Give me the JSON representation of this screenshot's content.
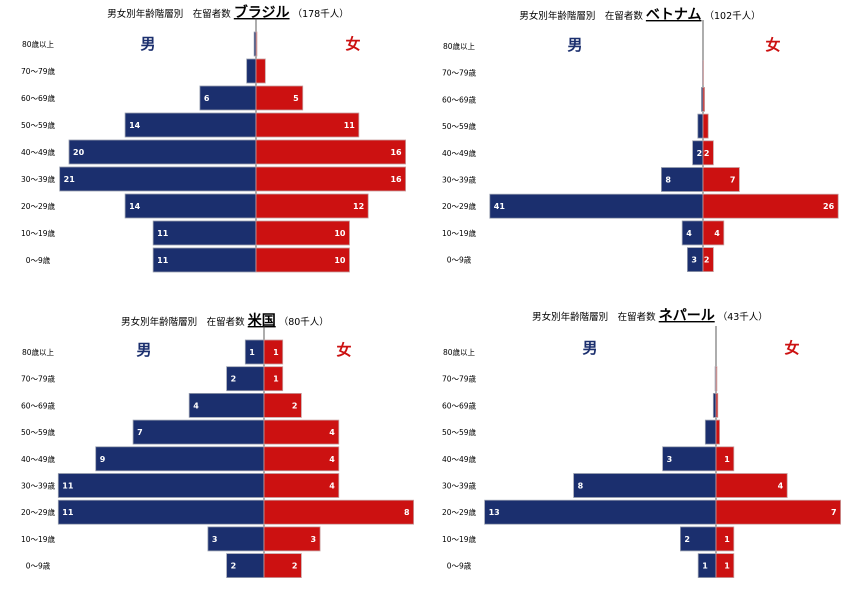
{
  "chart_data": [
    {
      "type": "bar",
      "title_prefix": "男女別年齢階層別　在留者数",
      "title_name": "ブラジル",
      "title_total": "（178千人）",
      "categories": [
        "80歳以上",
        "70～79歳",
        "60～69歳",
        "50～59歳",
        "40～49歳",
        "30～39歳",
        "20～29歳",
        "10～19歳",
        "0～9歳"
      ],
      "series": [
        {
          "name": "男",
          "values": [
            0.2,
            1,
            6,
            14,
            20,
            21,
            14,
            11,
            11
          ],
          "labels": [
            "",
            "",
            "6",
            "14",
            "20",
            "21",
            "14",
            "11",
            "11"
          ]
        },
        {
          "name": "女",
          "values": [
            0.1,
            1,
            5,
            11,
            16,
            16,
            12,
            10,
            10
          ],
          "labels": [
            "",
            "",
            "5",
            "11",
            "16",
            "16",
            "12",
            "10",
            "10"
          ]
        }
      ],
      "colors": {
        "male": "#1b2f6e",
        "female": "#cc1111"
      }
    },
    {
      "type": "bar",
      "title_prefix": "男女別年齢階層別　在留者数",
      "title_name": "ベトナム",
      "title_total": "（102千人）",
      "categories": [
        "80歳以上",
        "70～79歳",
        "60～69歳",
        "50～59歳",
        "40～49歳",
        "30～39歳",
        "20～29歳",
        "10～19歳",
        "0～9歳"
      ],
      "series": [
        {
          "name": "男",
          "values": [
            0,
            0.1,
            0.3,
            1,
            2,
            8,
            41,
            4,
            3
          ],
          "labels": [
            "",
            "",
            "",
            "",
            "2",
            "8",
            "41",
            "4",
            "3"
          ]
        },
        {
          "name": "女",
          "values": [
            0,
            0.1,
            0.3,
            1,
            2,
            7,
            26,
            4,
            2
          ],
          "labels": [
            "",
            "",
            "",
            "",
            "2",
            "7",
            "26",
            "4",
            "2"
          ]
        }
      ],
      "colors": {
        "male": "#1b2f6e",
        "female": "#cc1111"
      }
    },
    {
      "type": "bar",
      "title_prefix": "男女別年齢階層別　在留者数",
      "title_name": "米国",
      "title_total": "（80千人）",
      "categories": [
        "80歳以上",
        "70～79歳",
        "60～69歳",
        "50～59歳",
        "40～49歳",
        "30～39歳",
        "20～29歳",
        "10～19歳",
        "0～9歳"
      ],
      "series": [
        {
          "name": "男",
          "values": [
            1,
            2,
            4,
            7,
            9,
            11,
            11,
            3,
            2
          ],
          "labels": [
            "1",
            "2",
            "4",
            "7",
            "9",
            "11",
            "11",
            "3",
            "2"
          ]
        },
        {
          "name": "女",
          "values": [
            1,
            1,
            2,
            4,
            4,
            4,
            8,
            3,
            2
          ],
          "labels": [
            "1",
            "1",
            "2",
            "4",
            "4",
            "4",
            "8",
            "3",
            "2"
          ]
        }
      ],
      "colors": {
        "male": "#1b2f6e",
        "female": "#cc1111"
      }
    },
    {
      "type": "bar",
      "title_prefix": "男女別年齢階層別　在留者数",
      "title_name": "ネパール",
      "title_total": "（43千人）",
      "categories": [
        "80歳以上",
        "70～79歳",
        "60～69歳",
        "50～59歳",
        "40～49歳",
        "30～39歳",
        "20～29歳",
        "10～19歳",
        "0～9歳"
      ],
      "series": [
        {
          "name": "男",
          "values": [
            0,
            0.05,
            0.15,
            0.6,
            3,
            8,
            13,
            2,
            1
          ],
          "labels": [
            "",
            "",
            "",
            "",
            "3",
            "8",
            "13",
            "2",
            "1"
          ]
        },
        {
          "name": "女",
          "values": [
            0,
            0.05,
            0.1,
            0.2,
            1,
            4,
            7,
            1,
            1
          ],
          "labels": [
            "",
            "",
            "",
            "",
            "1",
            "4",
            "7",
            "1",
            "1"
          ]
        }
      ],
      "colors": {
        "male": "#1b2f6e",
        "female": "#cc1111"
      }
    }
  ]
}
